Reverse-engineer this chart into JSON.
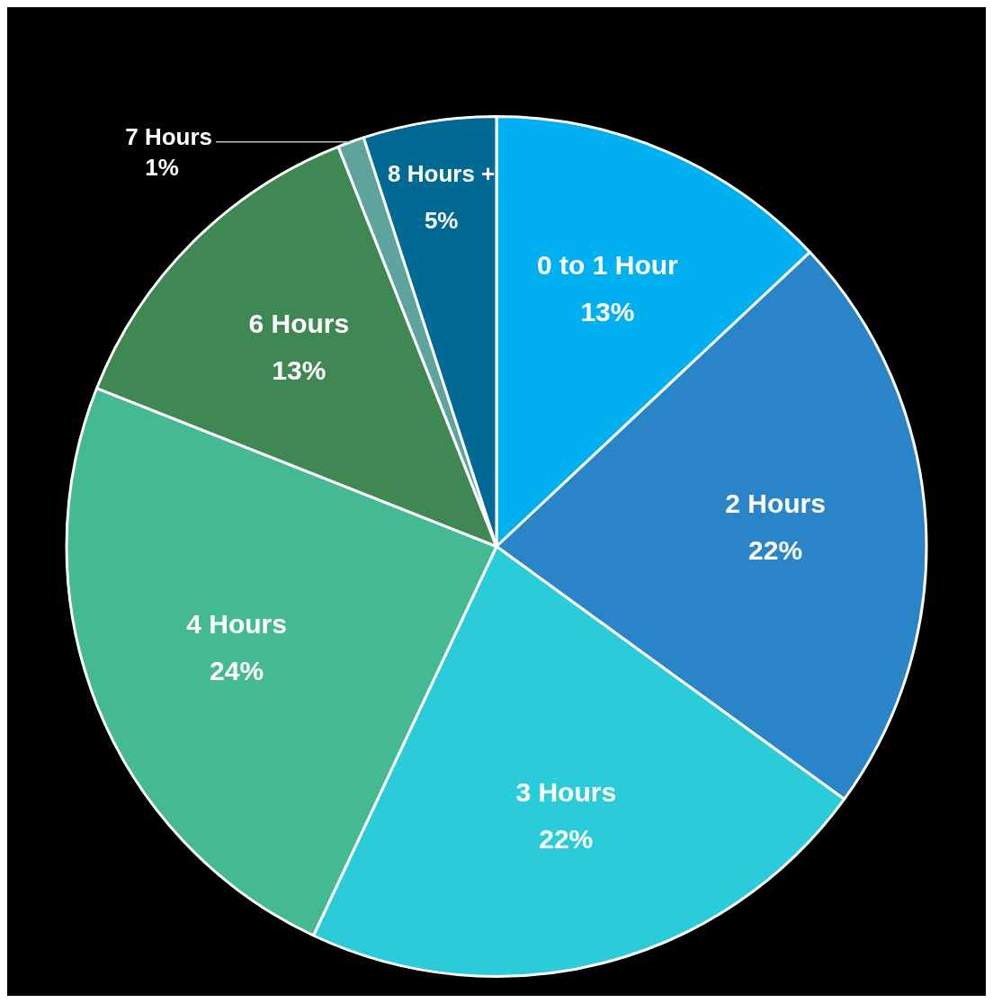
{
  "chart_data": {
    "type": "pie",
    "categories": [
      "0 to 1 Hour",
      "2 Hours",
      "3 Hours",
      "4 Hours",
      "6 Hours",
      "7 Hours",
      "8 Hours +"
    ],
    "values": [
      13,
      22,
      22,
      24,
      13,
      1,
      5
    ],
    "colors": [
      "#00b0f0",
      "#2a84c8",
      "#29ccd8",
      "#45b994",
      "#3f8853",
      "#5fa39e",
      "#006a94"
    ],
    "value_labels": [
      "13%",
      "22%",
      "22%",
      "24%",
      "13%",
      "1%",
      "5%"
    ],
    "legend": false
  }
}
